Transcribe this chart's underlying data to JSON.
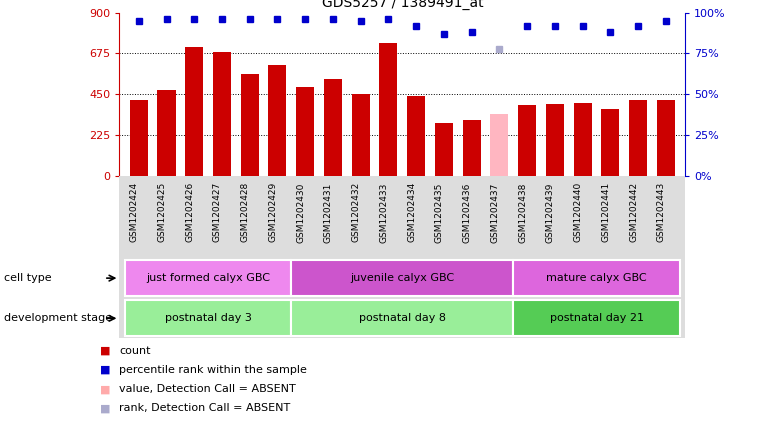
{
  "title": "GDS5257 / 1389491_at",
  "samples": [
    "GSM1202424",
    "GSM1202425",
    "GSM1202426",
    "GSM1202427",
    "GSM1202428",
    "GSM1202429",
    "GSM1202430",
    "GSM1202431",
    "GSM1202432",
    "GSM1202433",
    "GSM1202434",
    "GSM1202435",
    "GSM1202436",
    "GSM1202437",
    "GSM1202438",
    "GSM1202439",
    "GSM1202440",
    "GSM1202441",
    "GSM1202442",
    "GSM1202443"
  ],
  "counts": [
    420,
    470,
    710,
    680,
    560,
    610,
    490,
    535,
    450,
    730,
    440,
    290,
    305,
    340,
    390,
    395,
    400,
    365,
    420,
    415
  ],
  "absent_idx": [
    13
  ],
  "absent_rank_idx": [
    13
  ],
  "percentile_ranks": [
    95,
    96,
    96,
    96,
    96,
    96,
    96,
    96,
    95,
    96,
    92,
    87,
    88,
    78,
    92,
    92,
    92,
    88,
    92,
    95
  ],
  "ylim_left": [
    0,
    900
  ],
  "ylim_right": [
    0,
    100
  ],
  "yticks_left": [
    0,
    225,
    450,
    675,
    900
  ],
  "yticks_right": [
    0,
    25,
    50,
    75,
    100
  ],
  "bar_color": "#cc0000",
  "absent_bar_color": "#ffb6c1",
  "dot_color": "#0000cc",
  "absent_dot_color": "#aaaacc",
  "dev_stage_groups": [
    {
      "label": "postnatal day 3",
      "start": 0,
      "end": 5,
      "color": "#99ee99"
    },
    {
      "label": "postnatal day 8",
      "start": 6,
      "end": 13,
      "color": "#99ee99"
    },
    {
      "label": "postnatal day 21",
      "start": 14,
      "end": 19,
      "color": "#55cc55"
    }
  ],
  "cell_type_groups": [
    {
      "label": "just formed calyx GBC",
      "start": 0,
      "end": 5,
      "color": "#ee88ee"
    },
    {
      "label": "juvenile calyx GBC",
      "start": 6,
      "end": 13,
      "color": "#cc55cc"
    },
    {
      "label": "mature calyx GBC",
      "start": 14,
      "end": 19,
      "color": "#dd66dd"
    }
  ],
  "dev_stage_label": "development stage",
  "cell_type_label": "cell type",
  "legend_items": [
    {
      "label": "count",
      "color": "#cc0000"
    },
    {
      "label": "percentile rank within the sample",
      "color": "#0000cc"
    },
    {
      "label": "value, Detection Call = ABSENT",
      "color": "#ffaaaa"
    },
    {
      "label": "rank, Detection Call = ABSENT",
      "color": "#aaaacc"
    }
  ],
  "background_color": "#ffffff",
  "label_area_bg": "#dddddd"
}
